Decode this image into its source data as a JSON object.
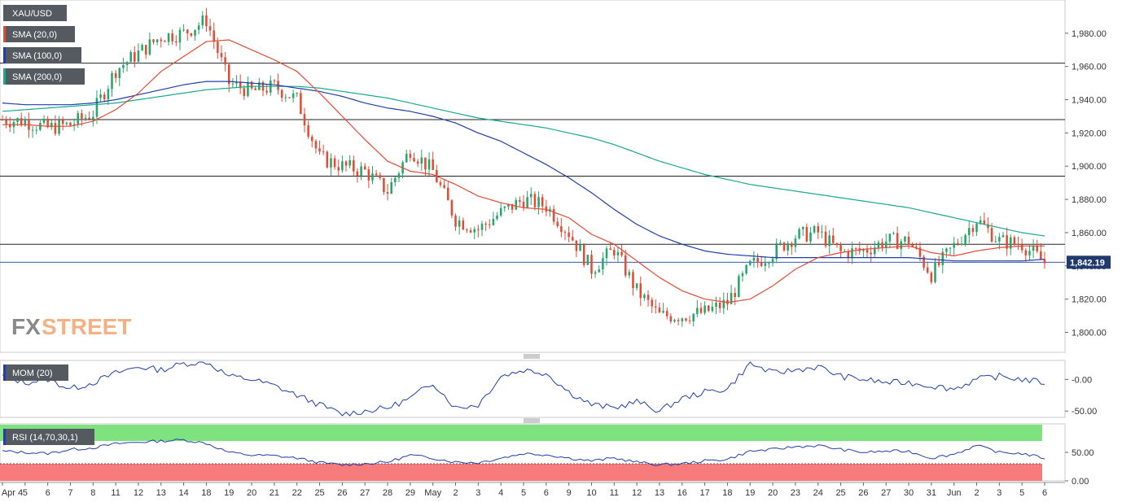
{
  "chart_data": [
    {
      "type": "candlestick",
      "instrument": "XAU/USD",
      "legend": [
        {
          "label": "XAU/USD",
          "swatch": "#555a60"
        },
        {
          "label": "SMA (20,0)",
          "swatch": "#e24b35"
        },
        {
          "label": "SMA (100,0)",
          "swatch": "#1f3fa8"
        },
        {
          "label": "SMA (200,0)",
          "swatch": "#1aa88a"
        }
      ],
      "colors": {
        "up": "#26a66a",
        "down": "#e24b35",
        "sma20": "#e24b35",
        "sma100": "#1f3fa8",
        "sma200": "#1aa88a"
      },
      "ylim": [
        1788,
        2000
      ],
      "y_ticks": [
        "1,800.00",
        "1,820.00",
        "1,840.00",
        "1,860.00",
        "1,880.00",
        "1,900.00",
        "1,920.00",
        "1,940.00",
        "1,960.00",
        "1,980.00"
      ],
      "y_tick_values": [
        1800,
        1820,
        1840,
        1860,
        1880,
        1900,
        1920,
        1940,
        1960,
        1980
      ],
      "horizontal_levels": [
        1962,
        1928,
        1894,
        1853
      ],
      "last_price": 1842.19,
      "last_price_label": "1,842.19",
      "candles_per_day": 6,
      "x_tick_labels": [
        "Apr 4",
        "5",
        "6",
        "7",
        "8",
        "11",
        "12",
        "13",
        "14",
        "18",
        "19",
        "20",
        "21",
        "22",
        "25",
        "26",
        "27",
        "28",
        "29",
        "May",
        "2",
        "3",
        "4",
        "5",
        "6",
        "9",
        "10",
        "11",
        "12",
        "13",
        "16",
        "17",
        "18",
        "19",
        "20",
        "23",
        "24",
        "25",
        "26",
        "27",
        "30",
        "31",
        "Jun",
        "2",
        "3",
        "5",
        "6"
      ],
      "daily_close": [
        1928,
        1927,
        1923,
        1925,
        1932,
        1958,
        1968,
        1978,
        1980,
        1988,
        1950,
        1945,
        1948,
        1940,
        1905,
        1900,
        1897,
        1885,
        1910,
        1897,
        1868,
        1862,
        1872,
        1880,
        1876,
        1860,
        1838,
        1850,
        1825,
        1810,
        1810,
        1812,
        1818,
        1840,
        1848,
        1858,
        1860,
        1848,
        1849,
        1855,
        1855,
        1835,
        1852,
        1868,
        1855,
        1853,
        1842
      ],
      "sma20_daily": [
        1925,
        1925,
        1924,
        1924,
        1927,
        1934,
        1944,
        1957,
        1966,
        1975,
        1976,
        1970,
        1964,
        1957,
        1944,
        1930,
        1916,
        1903,
        1897,
        1895,
        1889,
        1882,
        1878,
        1875,
        1874,
        1869,
        1859,
        1853,
        1843,
        1833,
        1825,
        1820,
        1818,
        1820,
        1828,
        1838,
        1845,
        1848,
        1850,
        1851,
        1852,
        1848,
        1846,
        1849,
        1851,
        1852,
        1852
      ],
      "sma100_daily": [
        1938,
        1937,
        1937,
        1937,
        1938,
        1940,
        1943,
        1946,
        1949,
        1951,
        1951,
        1950,
        1949,
        1947,
        1945,
        1942,
        1938,
        1935,
        1933,
        1930,
        1926,
        1920,
        1915,
        1908,
        1901,
        1893,
        1884,
        1874,
        1865,
        1858,
        1853,
        1849,
        1847,
        1846,
        1845,
        1845,
        1845,
        1845,
        1845,
        1845,
        1845,
        1844,
        1843,
        1843,
        1843,
        1843,
        1844
      ],
      "sma200_daily": [
        1933,
        1934,
        1935,
        1936,
        1937,
        1938,
        1940,
        1942,
        1944,
        1946,
        1947,
        1948,
        1948,
        1948,
        1947,
        1945,
        1943,
        1941,
        1938,
        1935,
        1932,
        1929,
        1927,
        1925,
        1923,
        1920,
        1917,
        1913,
        1908,
        1903,
        1899,
        1895,
        1892,
        1889,
        1887,
        1885,
        1883,
        1881,
        1879,
        1877,
        1875,
        1872,
        1869,
        1866,
        1863,
        1860,
        1858
      ]
    },
    {
      "type": "line",
      "indicator": "MOM (20)",
      "legend_label": "MOM (20)",
      "color": "#1f3fa8",
      "ylim": [
        -60,
        30
      ],
      "y_ticks": [
        "-0.00",
        "-50.00"
      ],
      "y_tick_values": [
        0,
        -50
      ],
      "daily_values": [
        5,
        -5,
        0,
        -15,
        -5,
        10,
        20,
        15,
        25,
        28,
        5,
        0,
        -10,
        -25,
        -40,
        -55,
        -50,
        -45,
        -30,
        -5,
        -45,
        -40,
        5,
        15,
        10,
        -20,
        -40,
        -45,
        -35,
        -50,
        -30,
        -20,
        -15,
        25,
        10,
        15,
        20,
        5,
        0,
        -5,
        -5,
        -10,
        -15,
        0,
        5,
        0,
        -5
      ]
    },
    {
      "type": "line",
      "indicator": "RSI (14,70,30,1)",
      "legend_label": "RSI (14,70,30,1)",
      "color": "#1f3fa8",
      "overbought": 70,
      "oversold": 30,
      "overbought_color": "#7ee37e",
      "oversold_color": "#f77b7b",
      "ylim": [
        0,
        100
      ],
      "y_ticks": [
        "50.00",
        "0.00"
      ],
      "y_tick_values": [
        50,
        0
      ],
      "daily_values": [
        52,
        50,
        48,
        55,
        58,
        65,
        68,
        70,
        72,
        66,
        50,
        45,
        44,
        40,
        32,
        28,
        30,
        33,
        45,
        40,
        33,
        32,
        40,
        48,
        46,
        40,
        35,
        40,
        33,
        28,
        30,
        35,
        38,
        52,
        55,
        60,
        62,
        55,
        50,
        52,
        52,
        40,
        47,
        62,
        50,
        48,
        40
      ]
    }
  ],
  "logo": {
    "part1": "FX",
    "part2": "STREET"
  }
}
